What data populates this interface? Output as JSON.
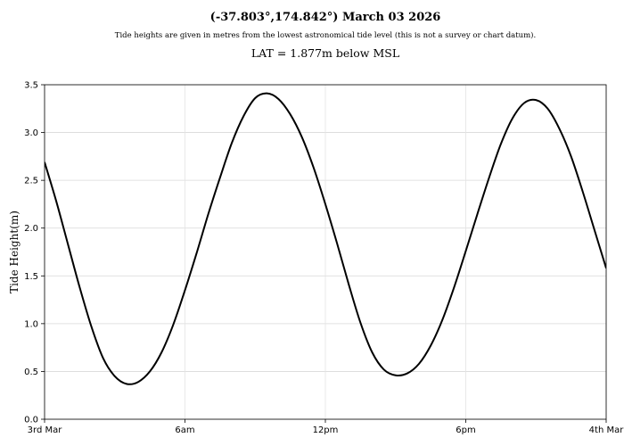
{
  "chart_data": {
    "type": "line",
    "title": "(-37.803°,174.842°) March 03 2026",
    "subtitle": "Tide heights are given in metres from the lowest astronomical tide level (this is not a survey or chart datum).",
    "subtitle2": "LAT = 1.877m below MSL",
    "xlabel": "",
    "ylabel": "Tide Height(m)",
    "xlim": [
      0,
      24
    ],
    "ylim": [
      0,
      3.5
    ],
    "grid": true,
    "x_ticks": [
      {
        "value": 0,
        "label": "3rd Mar"
      },
      {
        "value": 6,
        "label": "6am"
      },
      {
        "value": 12,
        "label": "12pm"
      },
      {
        "value": 18,
        "label": "6pm"
      },
      {
        "value": 24,
        "label": "4th Mar"
      }
    ],
    "y_ticks": [
      {
        "value": 0,
        "label": "0.0"
      },
      {
        "value": 0.5,
        "label": "0.5"
      },
      {
        "value": 1.0,
        "label": "1.0"
      },
      {
        "value": 1.5,
        "label": "1.5"
      },
      {
        "value": 2.0,
        "label": "2.0"
      },
      {
        "value": 2.5,
        "label": "2.5"
      },
      {
        "value": 3.0,
        "label": "3.0"
      },
      {
        "value": 3.5,
        "label": "3.5"
      }
    ],
    "series": [
      {
        "color": "#000000",
        "points": [
          [
            0,
            2.69
          ],
          [
            0.5,
            2.28
          ],
          [
            1.0,
            1.83
          ],
          [
            1.5,
            1.38
          ],
          [
            2.0,
            0.97
          ],
          [
            2.5,
            0.64
          ],
          [
            3.0,
            0.45
          ],
          [
            3.5,
            0.37
          ],
          [
            4.0,
            0.39
          ],
          [
            4.5,
            0.5
          ],
          [
            5.0,
            0.7
          ],
          [
            5.5,
            0.99
          ],
          [
            6.0,
            1.35
          ],
          [
            6.5,
            1.74
          ],
          [
            7.0,
            2.15
          ],
          [
            7.5,
            2.53
          ],
          [
            8.0,
            2.89
          ],
          [
            8.5,
            3.17
          ],
          [
            9.0,
            3.36
          ],
          [
            9.5,
            3.41
          ],
          [
            10.0,
            3.35
          ],
          [
            10.5,
            3.19
          ],
          [
            11.0,
            2.95
          ],
          [
            11.5,
            2.63
          ],
          [
            12.0,
            2.25
          ],
          [
            12.5,
            1.84
          ],
          [
            13.0,
            1.41
          ],
          [
            13.5,
            1.01
          ],
          [
            14.0,
            0.7
          ],
          [
            14.5,
            0.52
          ],
          [
            15.0,
            0.46
          ],
          [
            15.5,
            0.48
          ],
          [
            16.0,
            0.58
          ],
          [
            16.5,
            0.77
          ],
          [
            17.0,
            1.04
          ],
          [
            17.5,
            1.38
          ],
          [
            18.0,
            1.76
          ],
          [
            18.5,
            2.15
          ],
          [
            19.0,
            2.53
          ],
          [
            19.5,
            2.88
          ],
          [
            20.0,
            3.15
          ],
          [
            20.5,
            3.31
          ],
          [
            21.0,
            3.34
          ],
          [
            21.5,
            3.25
          ],
          [
            22.0,
            3.04
          ],
          [
            22.5,
            2.75
          ],
          [
            23.0,
            2.38
          ],
          [
            23.5,
            1.98
          ],
          [
            24.0,
            1.58
          ]
        ]
      }
    ]
  }
}
